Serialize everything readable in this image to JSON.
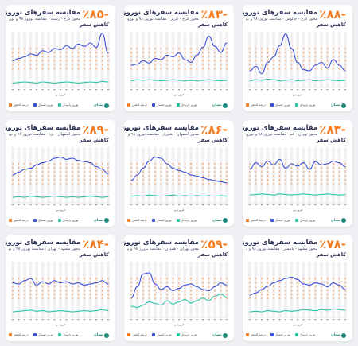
{
  "colors": {
    "pct": "#f47b20",
    "this_year": "#3b4fd6",
    "last_year": "#2ec4a6",
    "drop_bar": "#f47b20",
    "logo": "#1f8a7a"
  },
  "chart_data": [
    {
      "type": "line",
      "percent": "٪۸۵-",
      "title": "مقایسه سفرهای نوروزی",
      "drop_label": "کاهش سفر",
      "route": "محور کرج - رشت",
      "subtitle": "محور کرج - رشت · مقایسه نوروز ۹۸ و نوروز ۹۹",
      "legend": [
        "درصد کاهش",
        "نوروز امسال",
        "نوروز پارسال"
      ],
      "xlabel": "فروردین",
      "ylim": [
        0,
        100
      ],
      "series": [
        {
          "name": "نوروز پارسال",
          "role": "last_year",
          "values": [
            48,
            52,
            55,
            60,
            58,
            66,
            63,
            70,
            68,
            75,
            70,
            78,
            74,
            80,
            72,
            97,
            62
          ]
        },
        {
          "name": "نوروز امسال",
          "role": "this_year",
          "values": [
            8,
            9,
            10,
            9,
            8,
            10,
            9,
            8,
            9,
            10,
            9,
            8,
            9,
            10,
            9,
            11,
            10
          ]
        }
      ]
    },
    {
      "type": "line",
      "percent": "٪۸۳-",
      "title": "مقایسه سفرهای نوروزی",
      "drop_label": "کاهش سفر",
      "route": "محور کرج - تبریز",
      "subtitle": "محور کرج - تبریز · مقایسه نوروز ۹۸ و نوروز ۹۹",
      "legend": [
        "درصد کاهش",
        "نوروز امسال",
        "نوروز پارسال"
      ],
      "xlabel": "فروردین",
      "ylim": [
        0,
        100
      ],
      "series": [
        {
          "name": "نوروز پارسال",
          "role": "last_year",
          "values": [
            40,
            42,
            48,
            44,
            52,
            50,
            58,
            55,
            62,
            50,
            45,
            58,
            72,
            92,
            74,
            63,
            80
          ]
        },
        {
          "name": "نوروز امسال",
          "role": "this_year",
          "values": [
            12,
            14,
            13,
            14,
            13,
            12,
            13,
            14,
            13,
            12,
            13,
            12,
            13,
            14,
            13,
            12,
            13
          ]
        }
      ]
    },
    {
      "type": "line",
      "percent": "٪۸۸-",
      "title": "مقایسه سفرهای نوروزی",
      "drop_label": "کاهش سفر",
      "route": "محور کرج - چالوس",
      "subtitle": "محور کرج - چالوس · مقایسه نوروز ۹۸ و نوروز ۹۹",
      "legend": [
        "درصد کاهش",
        "نوروز امسال",
        "نوروز پارسال"
      ],
      "xlabel": "فروردین",
      "ylim": [
        0,
        100
      ],
      "series": [
        {
          "name": "نوروز پارسال",
          "role": "last_year",
          "values": [
            30,
            38,
            25,
            45,
            55,
            75,
            96,
            70,
            45,
            32,
            30,
            40,
            45,
            35,
            50,
            40,
            30
          ]
        },
        {
          "name": "نوروز امسال",
          "role": "this_year",
          "values": [
            12,
            14,
            13,
            15,
            14,
            12,
            13,
            14,
            12,
            13,
            14,
            12,
            13,
            14,
            13,
            12,
            13
          ]
        }
      ]
    },
    {
      "type": "line",
      "percent": "٪۸۹-",
      "title": "مقایسه سفرهای نوروزی",
      "drop_label": "کاهش سفر",
      "route": "محور اصفهان - یزد",
      "subtitle": "محور اصفهان - یزد · مقایسه نوروز ۹۸ و نوروز ۹۹",
      "legend": [
        "درصد کاهش",
        "نوروز امسال",
        "نوروز پارسال"
      ],
      "xlabel": "فروردین",
      "ylim": [
        0,
        100
      ],
      "series": [
        {
          "name": "نوروز پارسال",
          "role": "last_year",
          "values": [
            50,
            55,
            60,
            62,
            68,
            72,
            75,
            80,
            82,
            78,
            80,
            76,
            74,
            72,
            65,
            60,
            52
          ]
        },
        {
          "name": "نوروز امسال",
          "role": "this_year",
          "values": [
            10,
            11,
            10,
            12,
            11,
            10,
            11,
            12,
            11,
            10,
            11,
            10,
            11,
            12,
            11,
            10,
            11
          ]
        }
      ]
    },
    {
      "type": "line",
      "percent": "٪۸۶-",
      "title": "مقایسه سفرهای نوروزی",
      "drop_label": "کاهش سفر",
      "route": "محور اصفهان - شیراز",
      "subtitle": "محور اصفهان - شیراز · مقایسه نوروز ۹۸ و نوروز ۹۹",
      "legend": [
        "درصد کاهش",
        "نوروز امسال",
        "نوروز پارسال"
      ],
      "xlabel": "فروردین",
      "ylim": [
        0,
        100
      ],
      "series": [
        {
          "name": "نوروز پارسال",
          "role": "last_year",
          "values": [
            40,
            50,
            62,
            75,
            82,
            80,
            70,
            62,
            58,
            55,
            50,
            48,
            45,
            42,
            40,
            38,
            36
          ]
        },
        {
          "name": "نوروز امسال",
          "role": "this_year",
          "values": [
            12,
            13,
            12,
            14,
            13,
            12,
            13,
            14,
            12,
            13,
            12,
            13,
            12,
            13,
            12,
            13,
            12
          ]
        }
      ]
    },
    {
      "type": "line",
      "percent": "٪۸۳-",
      "title": "مقایسه سفرهای نوروزی",
      "drop_label": "کاهش سفر",
      "route": "محور تهران - قم",
      "subtitle": "محور تهران - قم · مقایسه نوروز ۹۸ و نوروز ۹۹",
      "legend": [
        "درصد کاهش",
        "نوروز امسال",
        "نوروز پارسال"
      ],
      "xlabel": "فروردین",
      "ylim": [
        0,
        100
      ],
      "series": [
        {
          "name": "نوروز پارسال",
          "role": "last_year",
          "values": [
            60,
            72,
            65,
            75,
            68,
            78,
            62,
            70,
            66,
            72,
            60,
            74,
            68,
            70,
            75,
            72,
            65
          ]
        },
        {
          "name": "نوروز امسال",
          "role": "this_year",
          "values": [
            14,
            15,
            16,
            15,
            14,
            16,
            15,
            14,
            15,
            16,
            15,
            14,
            15,
            16,
            15,
            14,
            15
          ]
        }
      ]
    },
    {
      "type": "line",
      "percent": "٪۸۴-",
      "title": "مقایسه سفرهای نوروزی",
      "drop_label": "کاهش سفر",
      "route": "محور مشهد - تهران",
      "subtitle": "محور مشهد - تهران · مقایسه نوروز ۹۸ و نوروز ۹۹",
      "legend": [
        "درصد کاهش",
        "نوروز امسال",
        "نوروز پارسال"
      ],
      "xlabel": "فروردین",
      "ylim": [
        0,
        100
      ],
      "series": [
        {
          "name": "نوروز پارسال",
          "role": "last_year",
          "values": [
            62,
            60,
            66,
            70,
            58,
            64,
            60,
            66,
            62,
            64,
            60,
            62,
            58,
            60,
            62,
            66,
            60
          ]
        },
        {
          "name": "نوروز امسال",
          "role": "this_year",
          "values": [
            10,
            11,
            12,
            13,
            11,
            12,
            10,
            11,
            12,
            11,
            10,
            11,
            12,
            11,
            12,
            14,
            12
          ]
        }
      ]
    },
    {
      "type": "line",
      "percent": "٪۵۹-",
      "title": "مقایسه سفرهای نوروزی",
      "drop_label": "کاهش سفر",
      "route": "محور تهران - همدان",
      "subtitle": "محور تهران - همدان · مقایسه نوروز ۹۸ و نوروز ۹۹",
      "legend": [
        "درصد کاهش",
        "نوروز امسال",
        "نوروز پارسال"
      ],
      "xlabel": "فروردین",
      "ylim": [
        0,
        100
      ],
      "series": [
        {
          "name": "نوروز پارسال",
          "role": "last_year",
          "values": [
            35,
            55,
            78,
            80,
            60,
            50,
            55,
            48,
            52,
            58,
            60,
            55,
            50,
            48,
            55,
            62,
            58
          ]
        },
        {
          "name": "نوروز امسال",
          "role": "this_year",
          "values": [
            20,
            18,
            22,
            28,
            25,
            22,
            30,
            24,
            28,
            32,
            26,
            30,
            35,
            30,
            38,
            42,
            36
          ]
        }
      ]
    },
    {
      "type": "line",
      "percent": "٪۷۸-",
      "title": "مقایسه سفرهای نوروزی",
      "drop_label": "کاهش سفر",
      "route": "محور مشهد - بابلسر",
      "subtitle": "محور مشهد - بابلسر · مقایسه نوروز ۹۸ و نوروز ۹۹",
      "legend": [
        "درصد کاهش",
        "نوروز امسال",
        "نوروز پارسال"
      ],
      "xlabel": "فروردین",
      "ylim": [
        0,
        100
      ],
      "series": [
        {
          "name": "نوروز پارسال",
          "role": "last_year",
          "values": [
            40,
            44,
            50,
            56,
            62,
            66,
            70,
            72,
            68,
            60,
            58,
            62,
            60,
            55,
            62,
            58,
            50
          ]
        },
        {
          "name": "نوروز امسال",
          "role": "this_year",
          "values": [
            10,
            11,
            10,
            12,
            11,
            10,
            12,
            11,
            12,
            14,
            13,
            12,
            14,
            13,
            15,
            14,
            13
          ]
        }
      ]
    }
  ],
  "brand": {
    "logo_text": "نشان",
    "logo_icon": "nashan-logo-icon"
  }
}
